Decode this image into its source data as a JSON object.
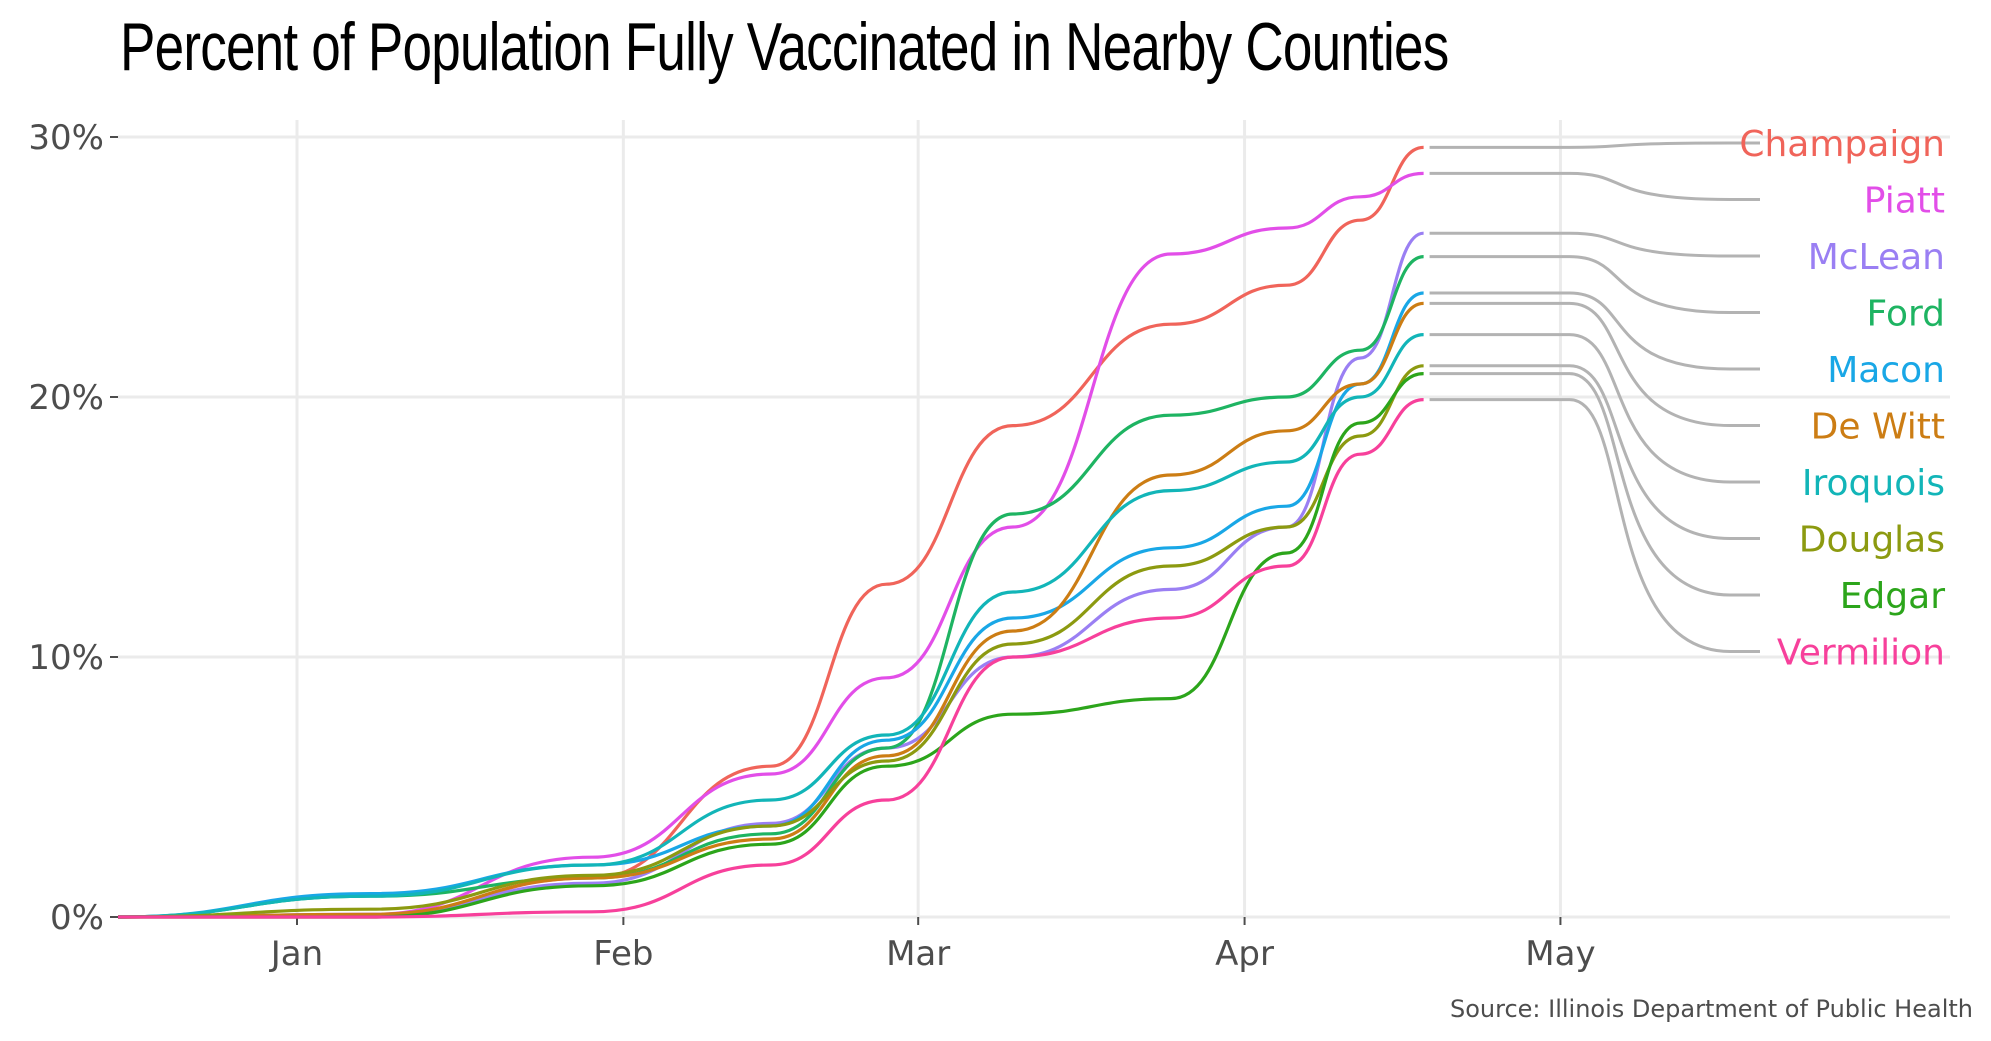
{
  "title": "Percent of Population Fully Vaccinated in Nearby Counties",
  "source": "Source: Illinois Department of Public Health",
  "chart_data": {
    "type": "line",
    "title": "Percent of Population Fully Vaccinated in Nearby Counties",
    "xlabel": "",
    "ylabel": "",
    "x_ticks": [
      "Jan",
      "Feb",
      "Mar",
      "Apr",
      "May"
    ],
    "y_ticks": [
      "0%",
      "10%",
      "20%",
      "30%"
    ],
    "xlim": [
      "2020-12-15",
      "2021-06-07"
    ],
    "ylim": [
      0,
      30
    ],
    "grid": "horizontal",
    "legend": "direct labels at right",
    "label_connector_color": "#b3b3b3",
    "x": [
      "2020-12-15",
      "2021-01-08",
      "2021-01-29",
      "2021-02-15",
      "2021-02-26",
      "2021-03-10",
      "2021-03-25",
      "2021-04-05",
      "2021-04-12",
      "2021-04-18"
    ],
    "series": [
      {
        "name": "Champaign",
        "color": "#f0645a",
        "values": [
          0,
          0,
          1.5,
          5.8,
          12.8,
          18.9,
          22.8,
          24.3,
          26.8,
          29.6
        ]
      },
      {
        "name": "Piatt",
        "color": "#e24ee8",
        "values": [
          0,
          0.1,
          2.3,
          5.5,
          9.2,
          15.0,
          25.5,
          26.5,
          27.7,
          28.6
        ]
      },
      {
        "name": "McLean",
        "color": "#9a7ff3",
        "values": [
          0,
          0.1,
          1.3,
          3.6,
          6.5,
          10.0,
          12.6,
          15.0,
          21.5,
          26.3
        ]
      },
      {
        "name": "Ford",
        "color": "#1eb462",
        "values": [
          0,
          0.8,
          1.5,
          3.2,
          6.5,
          15.5,
          19.3,
          20.0,
          21.8,
          25.4
        ]
      },
      {
        "name": "Macon",
        "color": "#19a7e6",
        "values": [
          0,
          0.9,
          2.0,
          3.5,
          6.8,
          11.5,
          14.2,
          15.8,
          20.5,
          24.0
        ]
      },
      {
        "name": "De Witt",
        "color": "#cc7d14",
        "values": [
          0,
          0.1,
          1.5,
          3.0,
          6.2,
          11.0,
          17.0,
          18.7,
          20.5,
          23.6
        ]
      },
      {
        "name": "Iroquois",
        "color": "#12b5b8",
        "values": [
          0,
          0.8,
          2.0,
          4.5,
          7.0,
          12.5,
          16.4,
          17.5,
          20.0,
          22.4
        ]
      },
      {
        "name": "Douglas",
        "color": "#8c9a10",
        "values": [
          0,
          0.3,
          1.6,
          3.5,
          6.0,
          10.5,
          13.5,
          15.0,
          18.5,
          21.2
        ]
      },
      {
        "name": "Edgar",
        "color": "#2ca51b",
        "values": [
          0,
          0,
          1.2,
          2.8,
          5.8,
          7.8,
          8.4,
          14.0,
          19.0,
          20.9
        ]
      },
      {
        "name": "Vermilion",
        "color": "#f7409b",
        "values": [
          0,
          0,
          0.2,
          2.0,
          4.5,
          10.0,
          11.5,
          13.5,
          17.8,
          19.9
        ]
      }
    ]
  }
}
